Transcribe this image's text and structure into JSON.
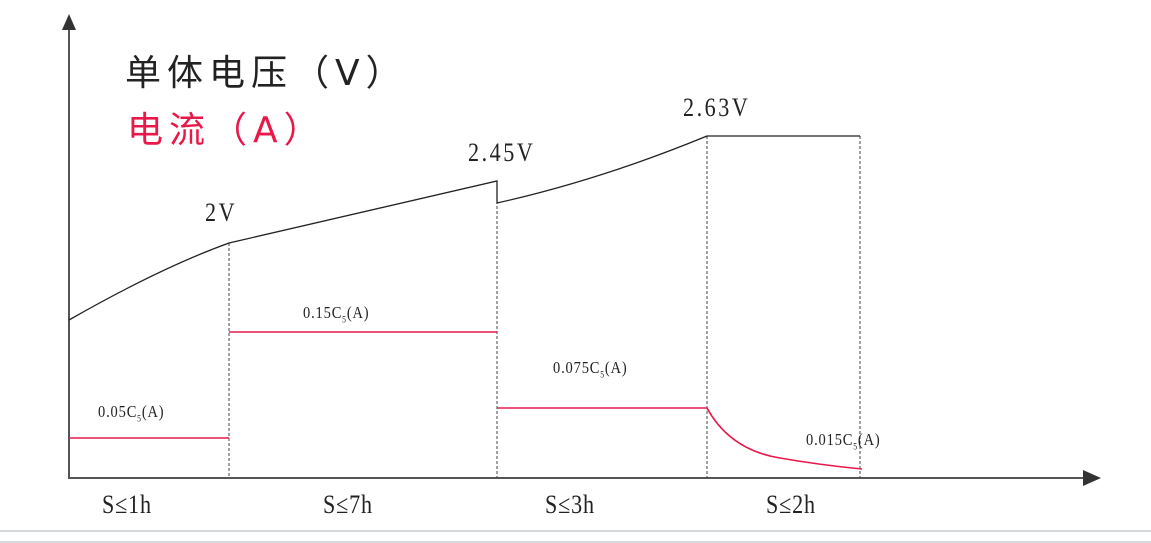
{
  "legend": {
    "voltage_label": "单体电压（V）",
    "current_label": "电流（A）",
    "voltage_color": "#222222",
    "current_color": "#e8194a"
  },
  "voltage_labels": [
    "2V",
    "2.45V",
    "2.63V"
  ],
  "current_labels": [
    {
      "prefix": "0.05C",
      "sub": "5",
      "suffix": "(A)"
    },
    {
      "prefix": "0.15C",
      "sub": "5",
      "suffix": "(A)"
    },
    {
      "prefix": "0.075C",
      "sub": "5",
      "suffix": "(A)"
    },
    {
      "prefix": "0.015C",
      "sub": "5",
      "suffix": "(A)"
    }
  ],
  "stage_durations": [
    "S≤1h",
    "S≤7h",
    "S≤3h",
    "S≤2h"
  ]
}
